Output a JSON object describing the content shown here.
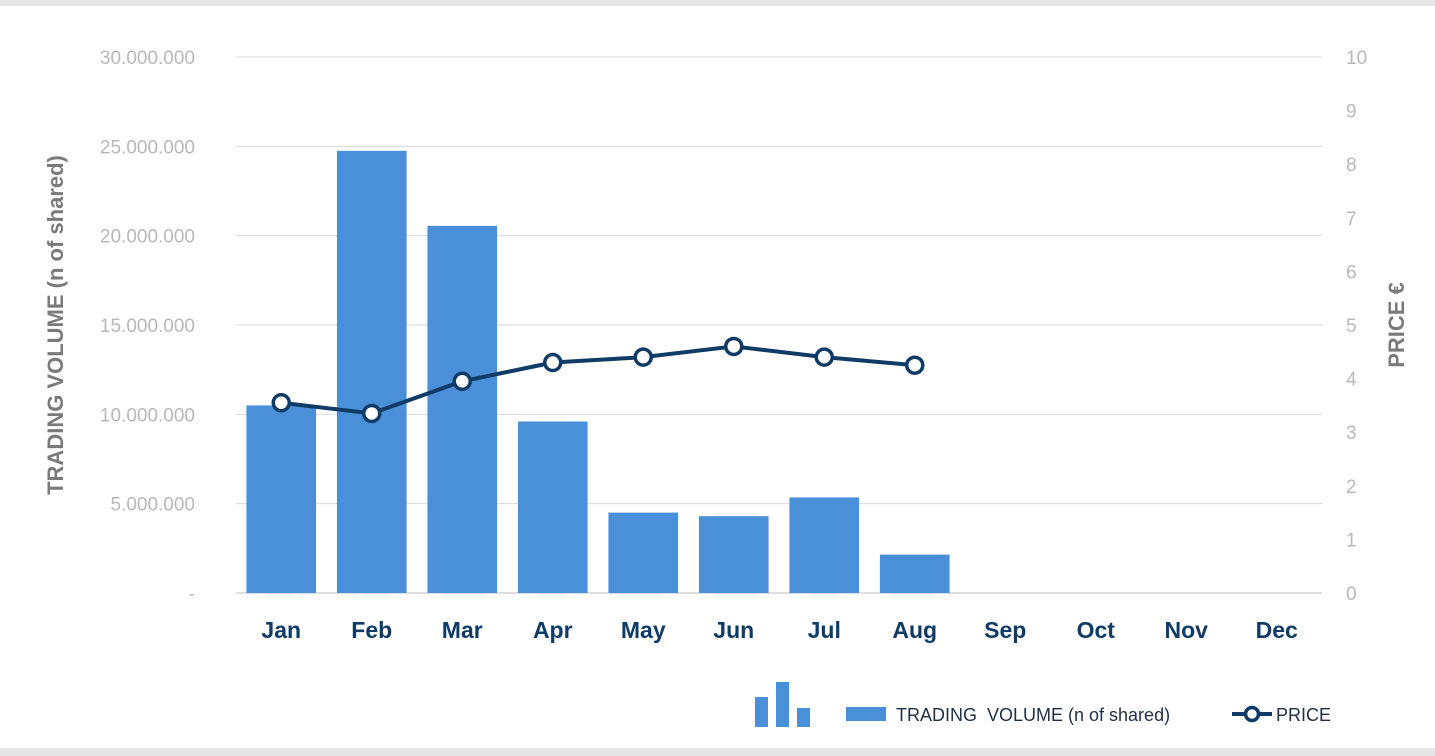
{
  "chart_data": {
    "type": "bar",
    "categories": [
      "Jan",
      "Feb",
      "Mar",
      "Apr",
      "May",
      "Jun",
      "Jul",
      "Aug",
      "Sep",
      "Oct",
      "Nov",
      "Dec"
    ],
    "series": [
      {
        "name": "TRADING  VOLUME (n of shared)",
        "type": "bar",
        "axis": "left",
        "color": "#4a90d9",
        "values": [
          10500000,
          24750000,
          20550000,
          9600000,
          4500000,
          4300000,
          5350000,
          2150000,
          null,
          null,
          null,
          null
        ]
      },
      {
        "name": "PRICE",
        "type": "line",
        "axis": "right",
        "color": "#0f3b66",
        "values": [
          3.55,
          3.35,
          3.95,
          4.3,
          4.4,
          4.6,
          4.4,
          4.25,
          null,
          null,
          null,
          null
        ]
      }
    ],
    "ylabel": "TRADING  VOLUME (n of shared)",
    "ylabel_right": "PRICE €",
    "ylim": [
      0,
      30000000
    ],
    "ylim_right": [
      0,
      10
    ],
    "yticks": [
      0,
      5000000,
      10000000,
      15000000,
      20000000,
      25000000,
      30000000
    ],
    "yticklabels": [
      "-",
      "5.000.000",
      "10.000.000",
      "15.000.000",
      "20.000.000",
      "25.000.000",
      "30.000.000"
    ],
    "yticks_right": [
      0,
      1,
      2,
      3,
      4,
      5,
      6,
      7,
      8,
      9,
      10
    ],
    "yticklabels_right": [
      "0",
      "1",
      "2",
      "3",
      "4",
      "5",
      "6",
      "7",
      "8",
      "9",
      "10"
    ],
    "grid": true,
    "legend": "bottom-right",
    "legend_icon": "bar-chart-icon"
  }
}
